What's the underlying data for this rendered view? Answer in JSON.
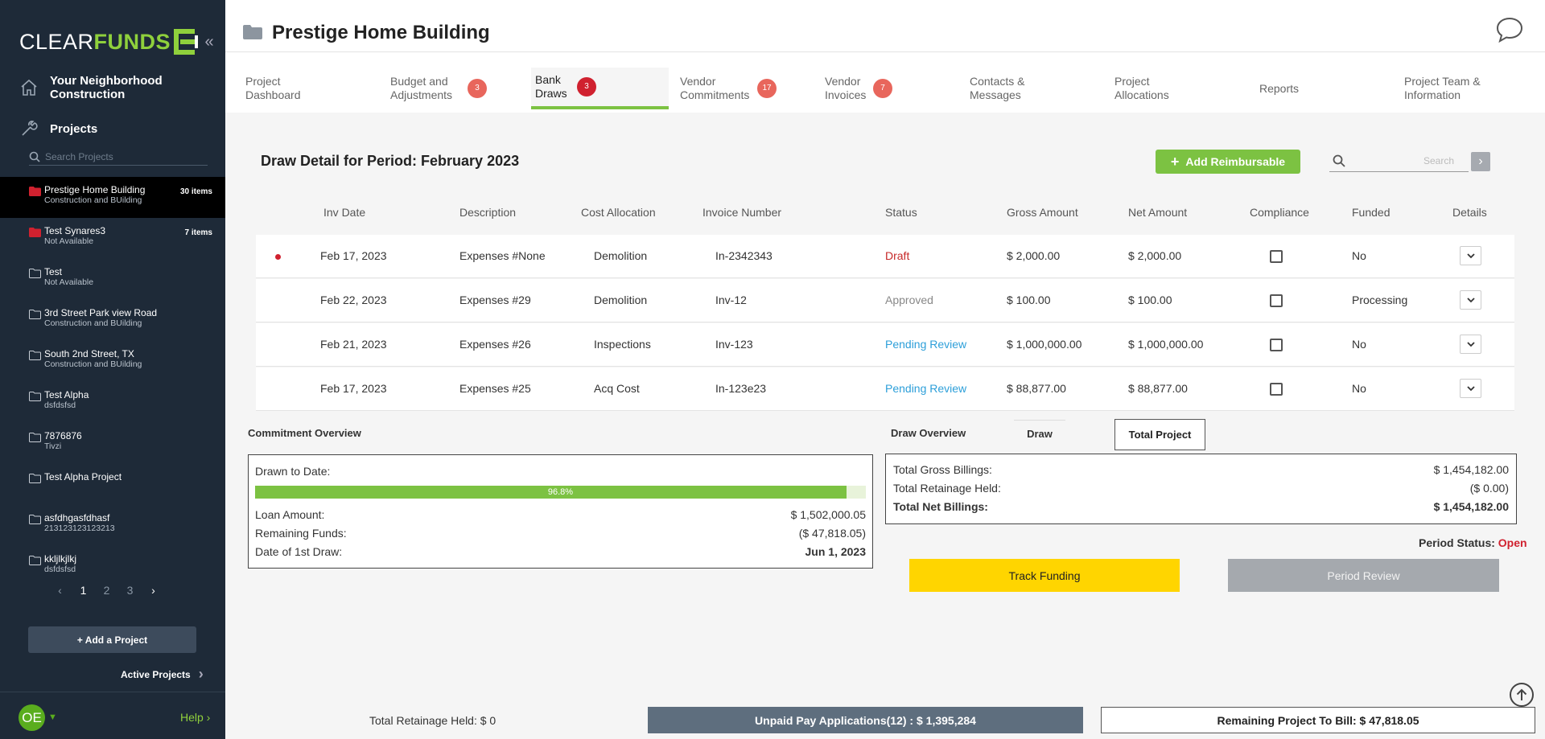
{
  "sidebar": {
    "logo": {
      "part1": "CLEAR",
      "part2": "FUNDS"
    },
    "company": "Your Neighborhood Construction",
    "projects_label": "Projects",
    "search_placeholder": "Search Projects",
    "projects": [
      {
        "name": "Prestige Home Building",
        "sub": "Construction and BUilding",
        "count": "30 items",
        "color": "#d0212f"
      },
      {
        "name": "Test Synares3",
        "sub": "Not Available",
        "count": "7 items",
        "color": "#d0212f"
      },
      {
        "name": "Test",
        "sub": "Not Available",
        "count": "",
        "color": "#c8ced6"
      },
      {
        "name": "3rd Street Park view Road",
        "sub": "Construction and BUilding",
        "count": "",
        "color": "#c8ced6"
      },
      {
        "name": "South 2nd Street, TX",
        "sub": "Construction and BUilding",
        "count": "",
        "color": "#c8ced6"
      },
      {
        "name": "Test Alpha",
        "sub": "dsfdsfsd",
        "count": "",
        "color": "#c8ced6"
      },
      {
        "name": "7876876",
        "sub": "Tivzi",
        "count": "",
        "color": "#c8ced6"
      },
      {
        "name": "Test Alpha Project",
        "sub": "",
        "count": "",
        "color": "#c8ced6"
      },
      {
        "name": "asfdhgasfdhasf",
        "sub": "213123123123213",
        "count": "",
        "color": "#c8ced6"
      },
      {
        "name": "kkljlkjlkj",
        "sub": "dsfdsfsd",
        "count": "",
        "color": "#c8ced6"
      }
    ],
    "pages": [
      "1",
      "2",
      "3"
    ],
    "add_project": "+ Add a Project",
    "active_projects": "Active Projects",
    "avatar": "OE",
    "help": "Help"
  },
  "header": {
    "title": "Prestige Home Building"
  },
  "tabs": [
    {
      "label": "Project Dashboard",
      "badge": ""
    },
    {
      "label": "Budget and Adjustments",
      "badge": "3"
    },
    {
      "label": "Bank Draws",
      "badge": "3",
      "active": true
    },
    {
      "label": "Vendor Commitments",
      "badge": "17"
    },
    {
      "label": "Vendor Invoices",
      "badge": "7"
    },
    {
      "label": "Contacts & Messages",
      "badge": ""
    },
    {
      "label": "Project Allocations",
      "badge": ""
    },
    {
      "label": "Reports",
      "badge": ""
    },
    {
      "label": "Project Team & Information",
      "badge": ""
    }
  ],
  "draw": {
    "heading": "Draw Detail for Period: February 2023",
    "add_reimbursable": "Add Reimbursable",
    "search_placeholder": "Search"
  },
  "table": {
    "columns": [
      "Inv Date",
      "Description",
      "Cost Allocation",
      "Invoice Number",
      "Status",
      "Gross Amount",
      "Net Amount",
      "Compliance",
      "Funded",
      "Details"
    ],
    "rows": [
      {
        "date": "Feb 17, 2023",
        "desc": "Expenses #None",
        "alloc": "Demolition",
        "inv": "In-2342343",
        "status": "Draft",
        "status_type": "draft",
        "gross": "$ 2,000.00",
        "net": "$ 2,000.00",
        "funded": "No",
        "flag": true
      },
      {
        "date": "Feb 22, 2023",
        "desc": "Expenses #29",
        "alloc": "Demolition",
        "inv": "Inv-12",
        "status": "Approved",
        "status_type": "approved",
        "gross": "$ 100.00",
        "net": "$ 100.00",
        "funded": "Processing",
        "flag": false
      },
      {
        "date": "Feb 21, 2023",
        "desc": "Expenses #26",
        "alloc": "Inspections",
        "inv": "Inv-123",
        "status": "Pending Review",
        "status_type": "pending",
        "gross": "$ 1,000,000.00",
        "net": "$ 1,000,000.00",
        "funded": "No",
        "flag": false
      },
      {
        "date": "Feb 17, 2023",
        "desc": "Expenses #25",
        "alloc": "Acq Cost",
        "inv": "In-123e23",
        "status": "Pending Review",
        "status_type": "pending",
        "gross": "$ 88,877.00",
        "net": "$ 88,877.00",
        "funded": "No",
        "flag": false
      }
    ]
  },
  "commitment": {
    "title": "Commitment Overview",
    "drawn_label": "Drawn to Date:",
    "progress_pct": 96.8,
    "progress_text": "96.8%",
    "loan_label": "Loan Amount:",
    "loan_value": "$ 1,502,000.05",
    "remaining_label": "Remaining Funds:",
    "remaining_value": "($ 47,818.05)",
    "first_draw_label": "Date of 1st Draw:",
    "first_draw_value": "Jun 1, 2023"
  },
  "overview": {
    "tab_overview": "Draw Overview",
    "tab_draw": "Draw",
    "tab_total": "Total Project",
    "gross_label": "Total Gross Billings:",
    "gross_value": "$ 1,454,182.00",
    "retain_label": "Total Retainage Held:",
    "retain_value": "($ 0.00)",
    "net_label": "Total Net Billings:",
    "net_value": "$ 1,454,182.00",
    "period_status_label": "Period Status:",
    "period_status_value": "Open",
    "track_funding": "Track Funding",
    "period_review": "Period Review"
  },
  "footer": {
    "retainage": "Total Retainage Held: $ 0",
    "unpaid": "Unpaid Pay Applications(12) : $ 1,395,284",
    "remaining": "Remaining Project To Bill: $ 47,818.05"
  },
  "colors": {
    "accent": "#7cc242",
    "sidebar": "#1e2a38",
    "danger": "#d0212f",
    "link": "#2d9fd9",
    "yellow": "#ffd500"
  }
}
